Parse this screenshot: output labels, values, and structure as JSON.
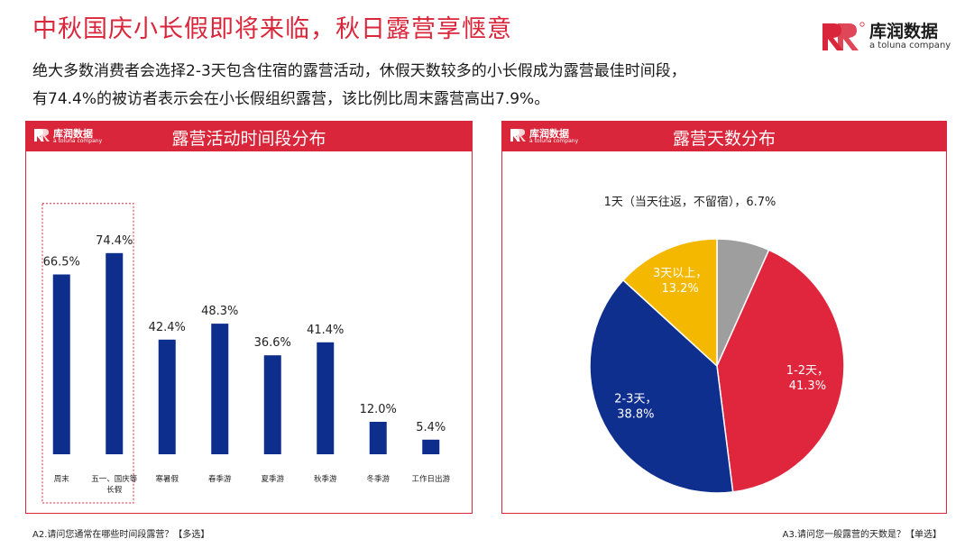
{
  "header": {
    "title": "中秋国庆小长假即将来临，秋日露营享惬意",
    "brand_name": "库润数据",
    "brand_sub": "a toluna company",
    "accent_color": "#d9263a"
  },
  "intro": {
    "line1": "绝大多数消费者会选择2-3天包含住宿的露营活动，休假天数较多的小长假成为露营最佳时间段，",
    "line2": "有74.4%的被访者表示会在小长假组织露营，该比例比周末露营高出7.9%。"
  },
  "panel_left": {
    "title": "露营活动时间段分布",
    "logo_name": "库润数据",
    "logo_sub": "a toluna company"
  },
  "panel_right": {
    "title": "露营天数分布",
    "logo_name": "库润数据",
    "logo_sub": "a toluna company"
  },
  "footnotes": {
    "left": "A2.请问您通常在哪些时间段露营？【多选】",
    "right": "A3.请问您一般露营的天数是？【单选】"
  },
  "chart_data": [
    {
      "type": "bar",
      "title": "露营活动时间段分布",
      "categories": [
        "周末",
        "五一、国庆等长假",
        "寒暑假",
        "春季游",
        "夏季游",
        "秋季游",
        "冬季游",
        "工作日出游"
      ],
      "category_lines": [
        [
          "周末"
        ],
        [
          "五一、国庆等",
          "长假"
        ],
        [
          "寒暑假"
        ],
        [
          "春季游"
        ],
        [
          "夏季游"
        ],
        [
          "秋季游"
        ],
        [
          "冬季游"
        ],
        [
          "工作日出游"
        ]
      ],
      "values": [
        66.5,
        74.4,
        42.4,
        48.3,
        36.6,
        41.4,
        12.0,
        5.4
      ],
      "value_labels": [
        "66.5%",
        "74.4%",
        "42.4%",
        "48.3%",
        "36.6%",
        "41.4%",
        "12.0%",
        "5.4%"
      ],
      "highlighted_categories": [
        "周末",
        "五一、国庆等长假"
      ],
      "bar_color": "#0d2e8c",
      "ylim": [
        0,
        100
      ],
      "grid": false,
      "xlabel": "",
      "ylabel": ""
    },
    {
      "type": "pie",
      "title": "露营天数分布",
      "slices": [
        {
          "name": "1天（当天往返，不留宿）",
          "value": 6.7,
          "label": [
            "1天（当天往返，不留宿），6.7%"
          ],
          "color": "#9e9e9e",
          "label_color": "#222222"
        },
        {
          "name": "1-2天",
          "value": 41.3,
          "label": [
            "1-2天，",
            "41.3%"
          ],
          "color": "#e0263d",
          "label_color": "#ffffff"
        },
        {
          "name": "2-3天",
          "value": 38.8,
          "label": [
            "2-3天，",
            "38.8%"
          ],
          "color": "#0f2f8f",
          "label_color": "#ffffff"
        },
        {
          "name": "3天以上",
          "value": 13.2,
          "label": [
            "3天以上，",
            "13.2%"
          ],
          "color": "#f5b800",
          "label_color": "#ffffff"
        }
      ],
      "legend": "none"
    }
  ]
}
